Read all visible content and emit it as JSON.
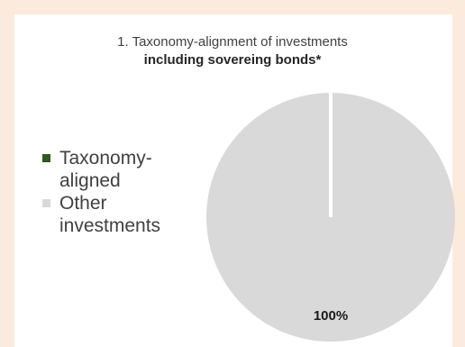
{
  "chart_data": {
    "type": "pie",
    "title": "1. Taxonomy-alignment of investments",
    "subtitle": "including sovereing bonds*",
    "series": [
      {
        "name": "Taxonomy-aligned",
        "value": 0,
        "color": "#2e5a1c",
        "label": ""
      },
      {
        "name": "Other investments",
        "value": 100,
        "color": "#d9d9d9",
        "label": "100%"
      }
    ],
    "legend_position": "left"
  }
}
